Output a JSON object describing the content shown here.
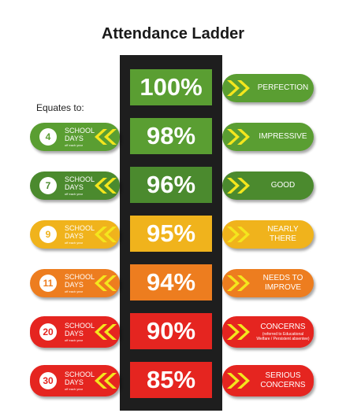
{
  "title": "Attendance Ladder",
  "equates_label": "Equates to:",
  "school_days_line1": "SCHOOL",
  "school_days_line2": "DAYS",
  "off_each_year": "off each year",
  "colors": {
    "ladder": "#1e1e1e",
    "green": "#5a9e32",
    "dark_green": "#4b8a2e",
    "yellow": "#f0b31c",
    "orange": "#ed7d1f",
    "red": "#e52520",
    "chevron": "#f4e61d"
  },
  "rungs": [
    {
      "percent": "100%",
      "days": "",
      "label1": "PERFECTION",
      "label2": "",
      "note": ""
    },
    {
      "percent": "98%",
      "days": "4",
      "label1": "IMPRESSIVE",
      "label2": "",
      "note": ""
    },
    {
      "percent": "96%",
      "days": "7",
      "label1": "GOOD",
      "label2": "",
      "note": ""
    },
    {
      "percent": "95%",
      "days": "9",
      "label1": "NEARLY",
      "label2": "THERE",
      "note": ""
    },
    {
      "percent": "94%",
      "days": "11",
      "label1": "NEEDS TO",
      "label2": "IMPROVE",
      "note": ""
    },
    {
      "percent": "90%",
      "days": "20",
      "label1": "CONCERNS",
      "label2": "",
      "note": "(referred to Educational Welfare / Persistent absentee)"
    },
    {
      "percent": "85%",
      "days": "30",
      "label1": "SERIOUS",
      "label2": "CONCERNS",
      "note": ""
    }
  ]
}
